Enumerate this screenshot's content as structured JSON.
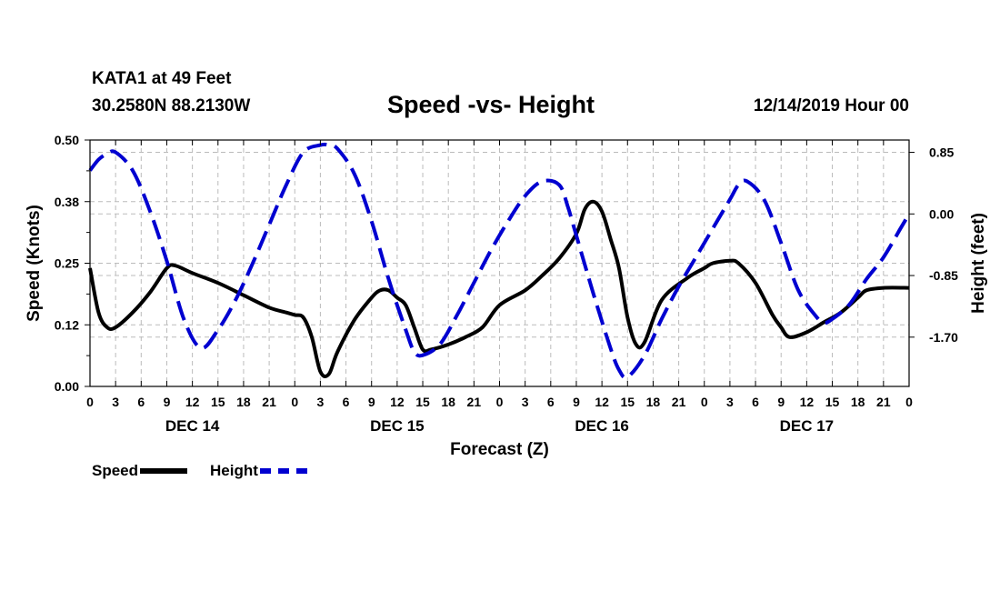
{
  "header": {
    "station": "KATA1 at 49 Feet",
    "coordinates": "30.2580N 88.2130W",
    "title": "Speed -vs- Height",
    "datetime": "12/14/2019 Hour 00"
  },
  "legend": {
    "speed": "Speed",
    "height": "Height"
  },
  "colors": {
    "speed": "#000000",
    "height": "#0000d0",
    "grid": "#bbbbbb"
  },
  "chart_data": {
    "type": "line",
    "title": "Speed -vs- Height",
    "xlabel": "Forecast (Z)",
    "ylabel_left": "Speed (Knots)",
    "ylabel_right": "Height (feet)",
    "xlim": [
      0,
      96
    ],
    "ylim_left": [
      0,
      0.5
    ],
    "ylim_right": [
      -2.38,
      1.02
    ],
    "left_ticks": [
      "0.00",
      "0.12",
      "0.25",
      "0.38",
      "0.50"
    ],
    "left_tick_values": [
      0,
      0.125,
      0.25,
      0.375,
      0.5
    ],
    "right_ticks": [
      "0.85",
      "0.00",
      "-0.85",
      "-1.70"
    ],
    "right_tick_values": [
      0.85,
      0,
      -0.85,
      -1.7
    ],
    "x_tick_labels": [
      "0",
      "3",
      "6",
      "9",
      "12",
      "15",
      "18",
      "21",
      "0",
      "3",
      "6",
      "9",
      "12",
      "15",
      "18",
      "21",
      "0",
      "3",
      "6",
      "9",
      "12",
      "15",
      "18",
      "21",
      "0",
      "3",
      "6",
      "9",
      "12",
      "15",
      "18",
      "21",
      "0"
    ],
    "day_labels": [
      {
        "hour": 12,
        "label": "DEC 14"
      },
      {
        "hour": 36,
        "label": "DEC 15"
      },
      {
        "hour": 60,
        "label": "DEC 16"
      },
      {
        "hour": 84,
        "label": "DEC 17"
      }
    ],
    "series": [
      {
        "name": "Speed",
        "axis": "left",
        "style": "solid",
        "x": [
          0,
          1,
          2,
          3,
          5,
          7,
          9,
          10,
          12,
          15,
          18,
          21,
          23,
          24,
          25,
          26,
          27,
          28,
          29,
          31,
          33,
          34,
          35,
          36,
          37,
          38,
          39,
          40,
          42,
          44,
          46,
          48,
          51,
          53,
          55,
          57,
          58,
          59,
          60,
          61,
          62,
          63,
          64,
          65,
          67,
          70,
          72,
          73,
          75,
          76,
          78,
          80,
          81,
          82,
          84,
          86,
          88,
          90,
          91,
          93,
          96
        ],
        "y": [
          0.24,
          0.15,
          0.12,
          0.12,
          0.15,
          0.19,
          0.24,
          0.245,
          0.23,
          0.21,
          0.185,
          0.16,
          0.15,
          0.145,
          0.14,
          0.1,
          0.03,
          0.025,
          0.07,
          0.135,
          0.18,
          0.195,
          0.195,
          0.18,
          0.165,
          0.12,
          0.075,
          0.075,
          0.085,
          0.1,
          0.12,
          0.165,
          0.195,
          0.225,
          0.26,
          0.31,
          0.36,
          0.375,
          0.355,
          0.3,
          0.24,
          0.14,
          0.085,
          0.09,
          0.175,
          0.22,
          0.24,
          0.25,
          0.255,
          0.25,
          0.21,
          0.145,
          0.12,
          0.1,
          0.11,
          0.13,
          0.15,
          0.18,
          0.195,
          0.2,
          0.2
        ]
      },
      {
        "name": "Height",
        "axis": "right",
        "style": "dashed",
        "x": [
          0,
          1,
          2,
          3,
          5,
          7,
          9,
          11,
          13,
          15,
          17,
          19,
          21,
          23,
          25,
          27,
          28,
          29,
          31,
          33,
          35,
          37,
          38,
          39,
          41,
          43,
          45,
          47,
          49,
          51,
          53,
          55,
          56,
          57,
          59,
          61,
          62,
          63,
          65,
          67,
          69,
          71,
          73,
          75,
          76,
          77,
          79,
          81,
          83,
          85,
          86,
          87,
          89,
          91,
          93,
          95,
          96
        ],
        "y": [
          0.6,
          0.75,
          0.83,
          0.85,
          0.6,
          0.05,
          -0.65,
          -1.45,
          -1.85,
          -1.6,
          -1.2,
          -0.7,
          -0.15,
          0.4,
          0.85,
          0.95,
          0.95,
          0.9,
          0.55,
          -0.1,
          -0.9,
          -1.6,
          -1.9,
          -1.95,
          -1.8,
          -1.4,
          -0.95,
          -0.5,
          -0.1,
          0.25,
          0.45,
          0.4,
          0.1,
          -0.3,
          -1.1,
          -1.85,
          -2.15,
          -2.25,
          -1.95,
          -1.45,
          -1.0,
          -0.6,
          -0.2,
          0.2,
          0.4,
          0.45,
          0.2,
          -0.4,
          -1.05,
          -1.4,
          -1.5,
          -1.45,
          -1.25,
          -0.9,
          -0.6,
          -0.2,
          0.0
        ]
      }
    ]
  }
}
